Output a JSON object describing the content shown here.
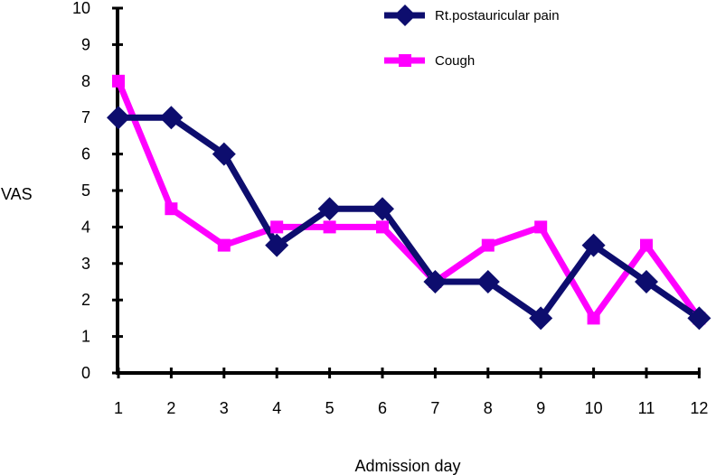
{
  "chart_data": {
    "type": "line",
    "title": "",
    "xlabel": "Admission day",
    "ylabel": "VAS",
    "categories": [
      "1",
      "2",
      "3",
      "4",
      "5",
      "6",
      "7",
      "8",
      "9",
      "10",
      "11",
      "12"
    ],
    "y_ticks": [
      "0",
      "1",
      "2",
      "3",
      "4",
      "5",
      "6",
      "7",
      "8",
      "9",
      "10"
    ],
    "ylim": [
      0,
      10
    ],
    "grid": false,
    "legend_position": "top-right",
    "series": [
      {
        "name": "Rt.postauricular pain",
        "color": "#0d0d6e",
        "marker": "diamond",
        "values": [
          7,
          7,
          6,
          3.5,
          4.5,
          4.5,
          2.5,
          2.5,
          1.5,
          3.5,
          2.5,
          1.5
        ]
      },
      {
        "name": "Cough",
        "color": "#ff00ff",
        "marker": "square",
        "values": [
          8,
          4.5,
          3.5,
          4,
          4,
          4,
          2.5,
          3.5,
          4,
          1.5,
          3.5,
          1.5
        ]
      }
    ]
  }
}
